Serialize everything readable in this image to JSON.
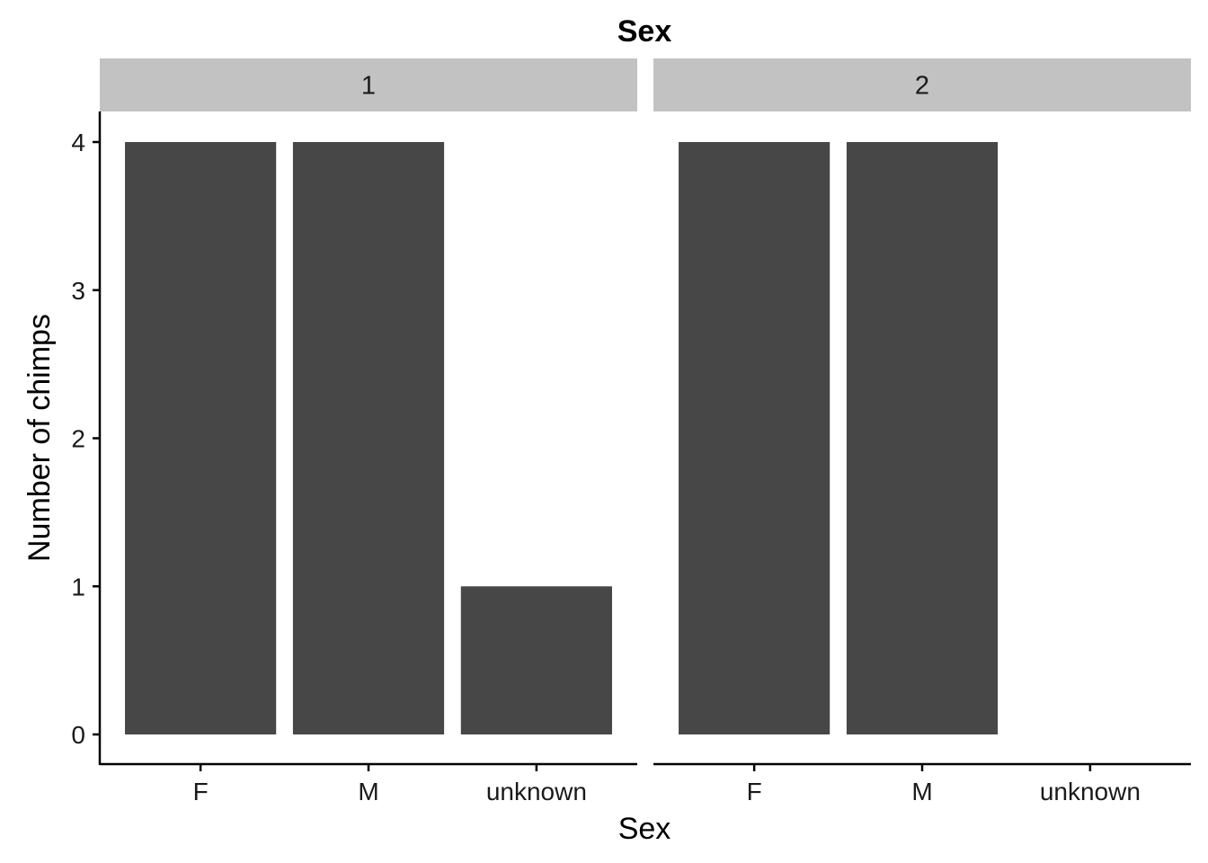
{
  "chart_data": {
    "type": "bar",
    "title": "Sex",
    "xlabel": "Sex",
    "ylabel": "Number of chimps",
    "categories": [
      "F",
      "M",
      "unknown"
    ],
    "yticks": [
      "0",
      "1",
      "2",
      "3",
      "4"
    ],
    "ylim": [
      0,
      4.2
    ],
    "grid": false,
    "facets": [
      {
        "label": "1",
        "values": [
          4,
          4,
          1
        ]
      },
      {
        "label": "2",
        "values": [
          4,
          4,
          0
        ]
      }
    ],
    "colors": {
      "bar": "#474747",
      "strip": "#c2c2c2",
      "axis": "#000000"
    }
  }
}
